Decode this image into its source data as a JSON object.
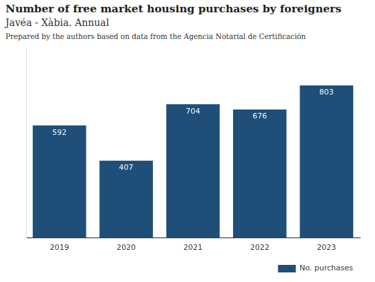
{
  "chart_data": {
    "type": "bar",
    "title": "Number of free market housing purchases by foreigners",
    "subtitle": "Javéa - Xàbia. Annual",
    "source": "Prepared by the authors based on data from the Agencia Notarial de Certificación",
    "categories": [
      "2019",
      "2020",
      "2021",
      "2022",
      "2023"
    ],
    "series": [
      {
        "name": "No. purchases",
        "color": "#1f4e79",
        "values": [
          592,
          407,
          704,
          676,
          803
        ]
      }
    ],
    "ylim": [
      0,
      1000
    ],
    "grid": false,
    "legend": "bottom right",
    "data_labels": true,
    "tick_labels": "x"
  }
}
